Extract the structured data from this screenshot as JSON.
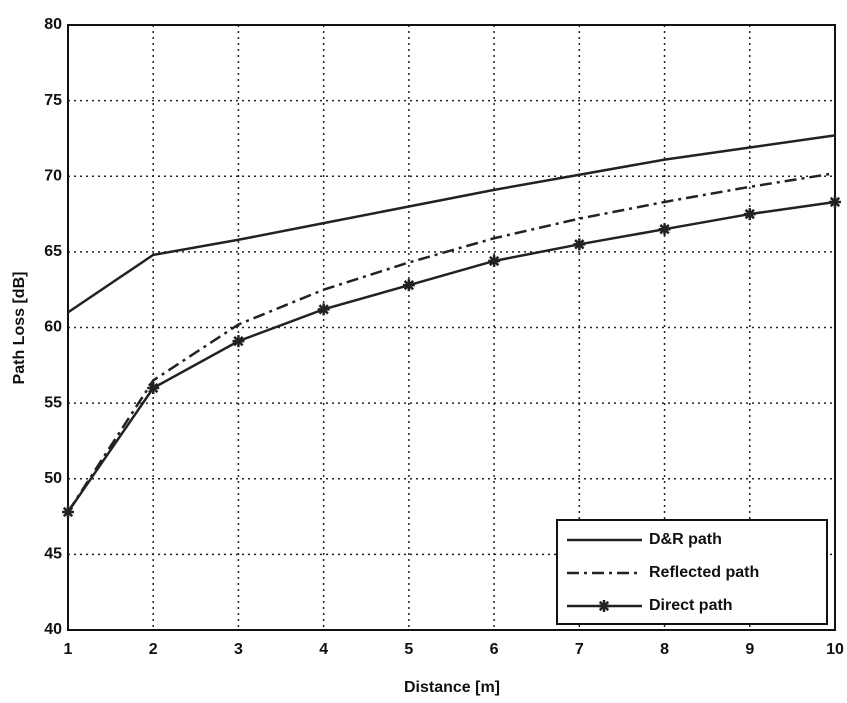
{
  "chart_data": {
    "type": "line",
    "xlabel": "Distance [m]",
    "ylabel": "Path Loss [dB]",
    "x": [
      1,
      2,
      3,
      4,
      5,
      6,
      7,
      8,
      9,
      10
    ],
    "series": [
      {
        "name": "D&R path",
        "color": "#222222",
        "linestyle": "solid",
        "values": [
          61,
          64.8,
          65.8,
          66.9,
          68,
          69.1,
          70.1,
          71.1,
          71.9,
          72.7
        ]
      },
      {
        "name": "Reflected path",
        "color": "#222222",
        "linestyle": "dashdot",
        "values": [
          47.8,
          56.5,
          60.2,
          62.5,
          64.3,
          65.9,
          67.2,
          68.3,
          69.3,
          70.2
        ]
      },
      {
        "name": "Direct path",
        "color": "#222222",
        "linestyle": "solid",
        "marker": "star",
        "values": [
          47.8,
          56,
          59.1,
          61.2,
          62.8,
          64.4,
          65.5,
          66.5,
          67.5,
          68.3
        ]
      }
    ],
    "xlim": [
      1,
      10
    ],
    "xticks": [
      1,
      2,
      3,
      4,
      5,
      6,
      7,
      8,
      9,
      10
    ],
    "ylim": [
      40,
      80
    ],
    "yticks": [
      40,
      45,
      50,
      55,
      60,
      65,
      70,
      75,
      80
    ],
    "grid": true,
    "legend": "lower right"
  }
}
